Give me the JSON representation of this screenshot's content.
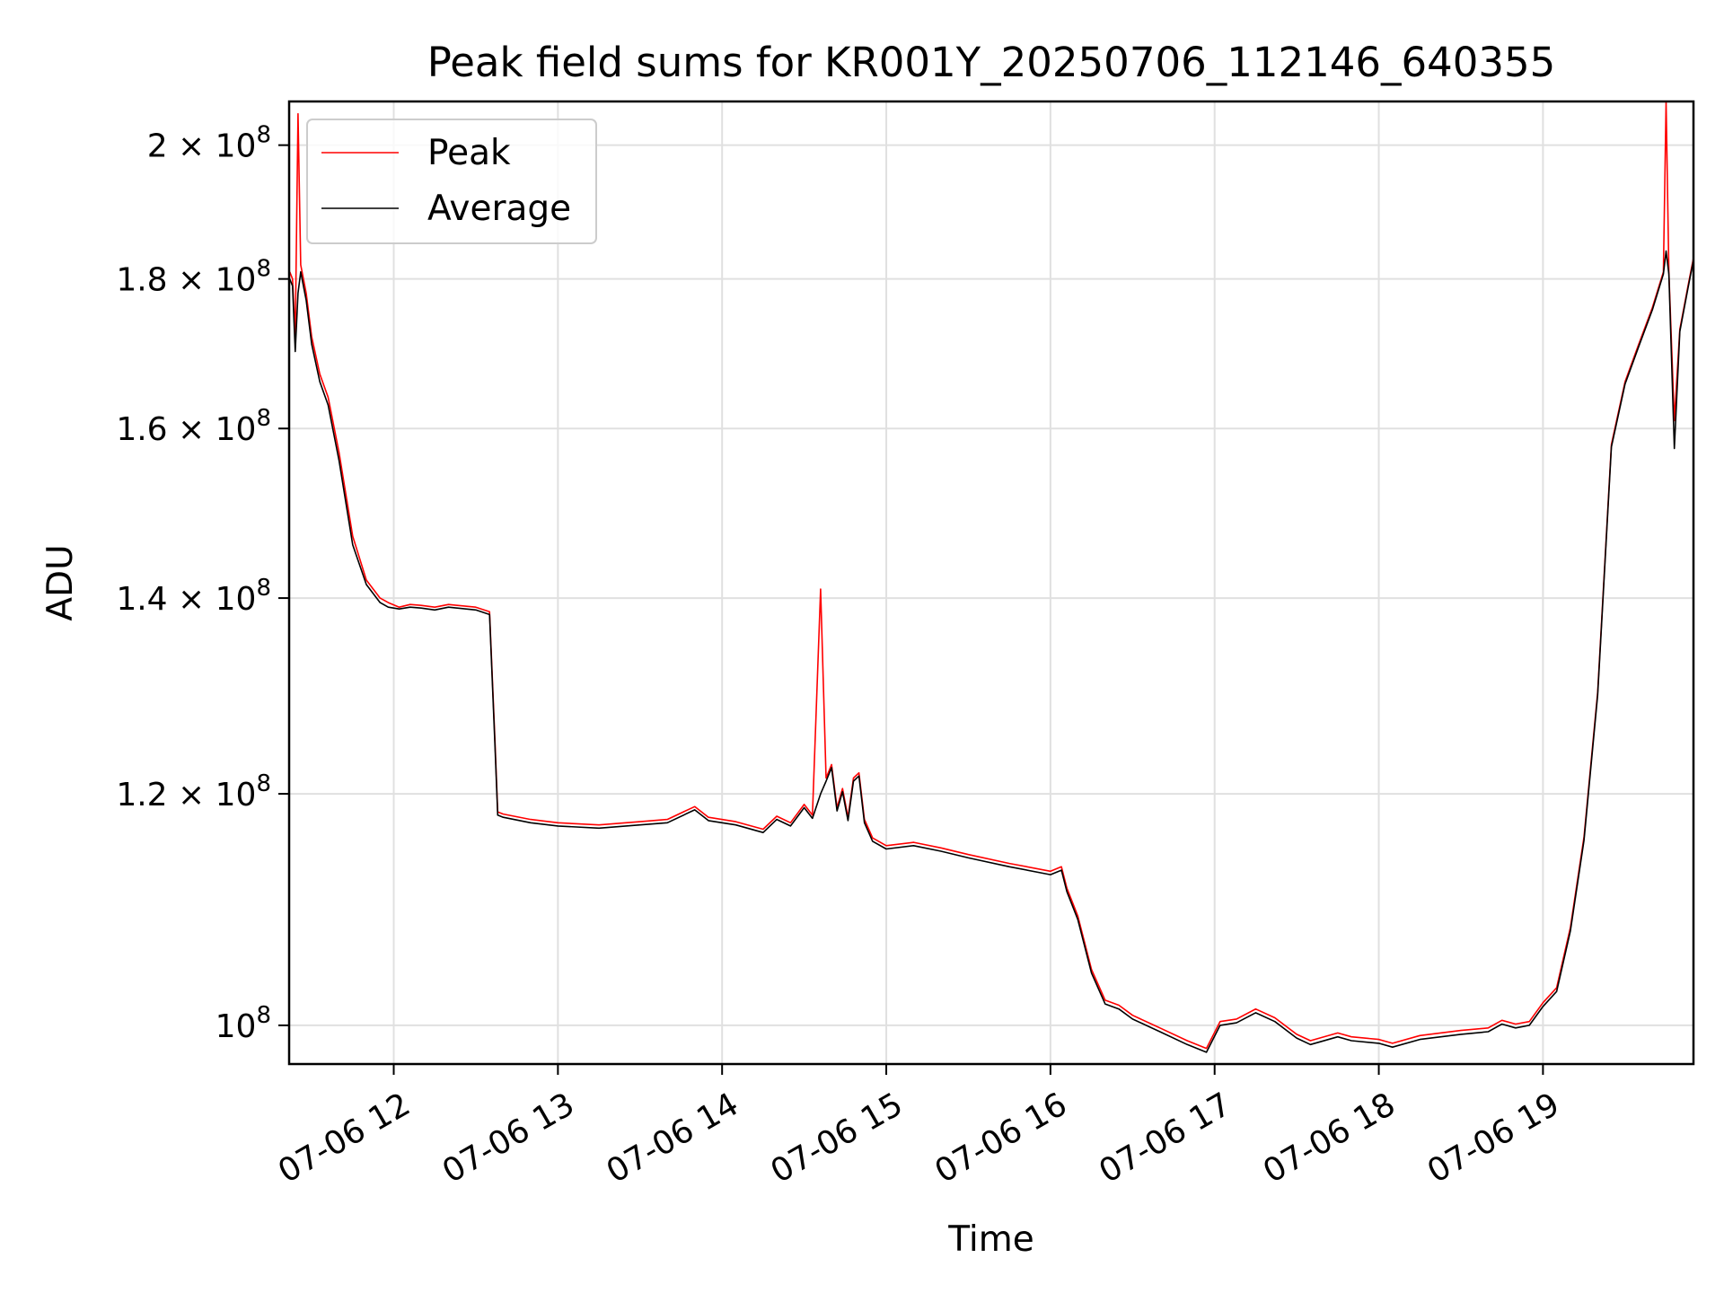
{
  "chart_data": {
    "type": "line",
    "title": "Peak field sums for KR001Y_20250706_112146_640355",
    "xlabel": "Time",
    "ylabel": "ADU",
    "x_ticks": [
      "07-06 12",
      "07-06 13",
      "07-06 14",
      "07-06 15",
      "07-06 16",
      "07-06 17",
      "07-06 18",
      "07-06 19"
    ],
    "y_ticks": [
      {
        "value": 100000000,
        "mantissa": "",
        "exponent": "8",
        "base": "10"
      },
      {
        "value": 120000000,
        "mantissa": "1.2",
        "exponent": "8",
        "base": "10"
      },
      {
        "value": 140000000,
        "mantissa": "1.4",
        "exponent": "8",
        "base": "10"
      },
      {
        "value": 160000000,
        "mantissa": "1.6",
        "exponent": "8",
        "base": "10"
      },
      {
        "value": 180000000,
        "mantissa": "1.8",
        "exponent": "8",
        "base": "10"
      },
      {
        "value": 200000000,
        "mantissa": "2",
        "exponent": "8",
        "base": "10"
      }
    ],
    "yscale": "log",
    "ylim": [
      97000000,
      207000000
    ],
    "xlim": [
      "2025-07-06 11:21:46",
      "2025-07-06 19:55:00"
    ],
    "grid": true,
    "legend_position": "top-left",
    "x": [
      "2025-07-06 11:22",
      "2025-07-06 11:23",
      "2025-07-06 11:24",
      "2025-07-06 11:25",
      "2025-07-06 11:26",
      "2025-07-06 11:28",
      "2025-07-06 11:30",
      "2025-07-06 11:33",
      "2025-07-06 11:36",
      "2025-07-06 11:40",
      "2025-07-06 11:45",
      "2025-07-06 11:50",
      "2025-07-06 11:55",
      "2025-07-06 11:58",
      "2025-07-06 12:02",
      "2025-07-06 12:06",
      "2025-07-06 12:10",
      "2025-07-06 12:15",
      "2025-07-06 12:20",
      "2025-07-06 12:30",
      "2025-07-06 12:35",
      "2025-07-06 12:37",
      "2025-07-06 12:38",
      "2025-07-06 12:40",
      "2025-07-06 12:50",
      "2025-07-06 13:00",
      "2025-07-06 13:15",
      "2025-07-06 13:30",
      "2025-07-06 13:40",
      "2025-07-06 13:50",
      "2025-07-06 13:55",
      "2025-07-06 14:05",
      "2025-07-06 14:15",
      "2025-07-06 14:20",
      "2025-07-06 14:25",
      "2025-07-06 14:30",
      "2025-07-06 14:33",
      "2025-07-06 14:36",
      "2025-07-06 14:38",
      "2025-07-06 14:40",
      "2025-07-06 14:42",
      "2025-07-06 14:44",
      "2025-07-06 14:46",
      "2025-07-06 14:48",
      "2025-07-06 14:50",
      "2025-07-06 14:52",
      "2025-07-06 14:55",
      "2025-07-06 15:00",
      "2025-07-06 15:10",
      "2025-07-06 15:20",
      "2025-07-06 15:30",
      "2025-07-06 15:45",
      "2025-07-06 16:00",
      "2025-07-06 16:04",
      "2025-07-06 16:06",
      "2025-07-06 16:10",
      "2025-07-06 16:15",
      "2025-07-06 16:20",
      "2025-07-06 16:25",
      "2025-07-06 16:30",
      "2025-07-06 16:40",
      "2025-07-06 16:50",
      "2025-07-06 16:57",
      "2025-07-06 17:02",
      "2025-07-06 17:08",
      "2025-07-06 17:15",
      "2025-07-06 17:22",
      "2025-07-06 17:30",
      "2025-07-06 17:35",
      "2025-07-06 17:45",
      "2025-07-06 17:50",
      "2025-07-06 18:00",
      "2025-07-06 18:05",
      "2025-07-06 18:15",
      "2025-07-06 18:30",
      "2025-07-06 18:40",
      "2025-07-06 18:45",
      "2025-07-06 18:50",
      "2025-07-06 18:55",
      "2025-07-06 19:00",
      "2025-07-06 19:05",
      "2025-07-06 19:10",
      "2025-07-06 19:15",
      "2025-07-06 19:20",
      "2025-07-06 19:25",
      "2025-07-06 19:30",
      "2025-07-06 19:35",
      "2025-07-06 19:40",
      "2025-07-06 19:44",
      "2025-07-06 19:45",
      "2025-07-06 19:46",
      "2025-07-06 19:48",
      "2025-07-06 19:50",
      "2025-07-06 19:53",
      "2025-07-06 19:55"
    ],
    "series": [
      {
        "name": "Peak",
        "color": "#ff0000",
        "values": [
          181000000,
          180000000,
          172000000,
          205000000,
          182000000,
          178000000,
          172000000,
          167000000,
          164000000,
          157000000,
          147000000,
          142000000,
          140000000,
          139500000,
          139000000,
          139300000,
          139200000,
          139000000,
          139300000,
          139000000,
          138500000,
          125000000,
          118300000,
          118100000,
          117600000,
          117300000,
          117100000,
          117400000,
          117600000,
          118800000,
          117800000,
          117400000,
          116700000,
          117900000,
          117300000,
          119000000,
          118000000,
          141000000,
          121500000,
          122800000,
          118700000,
          120500000,
          117800000,
          121500000,
          122000000,
          117600000,
          115900000,
          115200000,
          115500000,
          115000000,
          114400000,
          113600000,
          112900000,
          113300000,
          111400000,
          109000000,
          104500000,
          102000000,
          101600000,
          100800000,
          99800000,
          98800000,
          98200000,
          100300000,
          100500000,
          101300000,
          100600000,
          99300000,
          98800000,
          99400000,
          99100000,
          98900000,
          98600000,
          99200000,
          99600000,
          99800000,
          100400000,
          100100000,
          100300000,
          101800000,
          103000000,
          108000000,
          116000000,
          130000000,
          158000000,
          166000000,
          171000000,
          176000000,
          181000000,
          207000000,
          181000000,
          161000000,
          173000000,
          179000000,
          183000000
        ]
      },
      {
        "name": "Average",
        "color": "#000000",
        "values": [
          180000000,
          179000000,
          170000000,
          178000000,
          181000000,
          177000000,
          171000000,
          166000000,
          163000000,
          156000000,
          146000000,
          141500000,
          139500000,
          139000000,
          138800000,
          139000000,
          138900000,
          138700000,
          139000000,
          138700000,
          138200000,
          124500000,
          118000000,
          117800000,
          117300000,
          117000000,
          116800000,
          117100000,
          117300000,
          118500000,
          117500000,
          117100000,
          116400000,
          117600000,
          117000000,
          118700000,
          117700000,
          120000000,
          121200000,
          122500000,
          118400000,
          120200000,
          117500000,
          121200000,
          121700000,
          117300000,
          115600000,
          114900000,
          115200000,
          114700000,
          114100000,
          113300000,
          112600000,
          113000000,
          111100000,
          108700000,
          104200000,
          101700000,
          101300000,
          100500000,
          99500000,
          98500000,
          97900000,
          100000000,
          100200000,
          101000000,
          100300000,
          99000000,
          98500000,
          99100000,
          98800000,
          98600000,
          98300000,
          98900000,
          99300000,
          99500000,
          100100000,
          99800000,
          100000000,
          101500000,
          102700000,
          107700000,
          115700000,
          129700000,
          157700000,
          165700000,
          170700000,
          175700000,
          180700000,
          184000000,
          180700000,
          157500000,
          172700000,
          178700000,
          182700000
        ]
      }
    ]
  }
}
